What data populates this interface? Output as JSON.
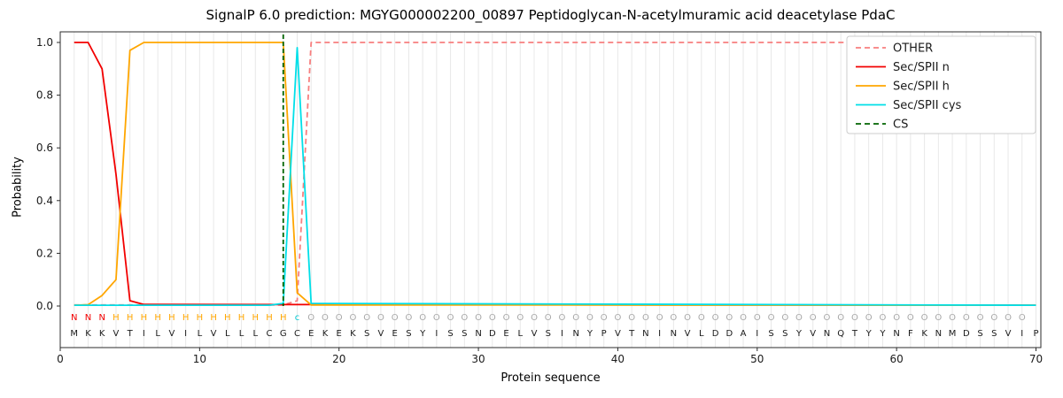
{
  "chart_data": {
    "type": "line",
    "title": "SignalP 6.0 prediction: MGYG000002200_00897 Peptidoglycan-N-acetylmuramic acid deacetylase PdaC",
    "xlabel": "Protein sequence",
    "ylabel": "Probability",
    "xlim": [
      0,
      70.35
    ],
    "ylim": [
      -0.16,
      1.04
    ],
    "xticks": [
      0,
      10,
      20,
      30,
      40,
      50,
      60,
      70
    ],
    "yticks": [
      0,
      0.2,
      0.4,
      0.6,
      0.8,
      1.0
    ],
    "grid": "vertical-line-per-residue",
    "legend_position": "upper right",
    "series": [
      {
        "name": "OTHER",
        "color": "#f77f7f",
        "dash": true,
        "x": [
          1,
          16,
          17,
          18,
          70
        ],
        "y": [
          0.004,
          0.004,
          0.02,
          1.0,
          1.0
        ]
      },
      {
        "name": "Sec/SPII n",
        "color": "#f20000",
        "dash": false,
        "x": [
          1,
          2,
          3,
          4,
          5,
          6,
          70
        ],
        "y": [
          1.0,
          1.0,
          0.9,
          0.5,
          0.02,
          0.006,
          0.003
        ]
      },
      {
        "name": "Sec/SPII h",
        "color": "#ffa600",
        "dash": false,
        "x": [
          1,
          2,
          3,
          4,
          5,
          6,
          16,
          17,
          18,
          70
        ],
        "y": [
          0.003,
          0.005,
          0.04,
          0.1,
          0.97,
          1.0,
          1.0,
          0.05,
          0.004,
          0.003
        ]
      },
      {
        "name": "Sec/SPII cys",
        "color": "#00dfe8",
        "dash": false,
        "x": [
          1,
          15,
          16,
          17,
          18,
          70
        ],
        "y": [
          0.003,
          0.003,
          0.01,
          0.98,
          0.01,
          0.003
        ]
      },
      {
        "name": "CS",
        "color": "#006400",
        "dash": true,
        "type": "vline",
        "x": 16,
        "ytop": 1.03
      }
    ],
    "sequence": "MKKVTILVILVLLLCGCEKEKSVESYISSNDELVSINYPVTNINVLDDAISSYVNQTYYNFKNMDSSVIP",
    "residue_labels": "NNNHHHHHHHHHHHHHcOOOOOOOOOOOOOOOOOOOOOOOOOOOOOOOOOOOOOOOOOOOOOOOOOOOO",
    "label_colors": {
      "N": "#f20000",
      "H": "#ffa600",
      "c": "#00c8d2",
      "O": "#a8a8a8"
    },
    "residue_color": "#1a1a1a"
  }
}
